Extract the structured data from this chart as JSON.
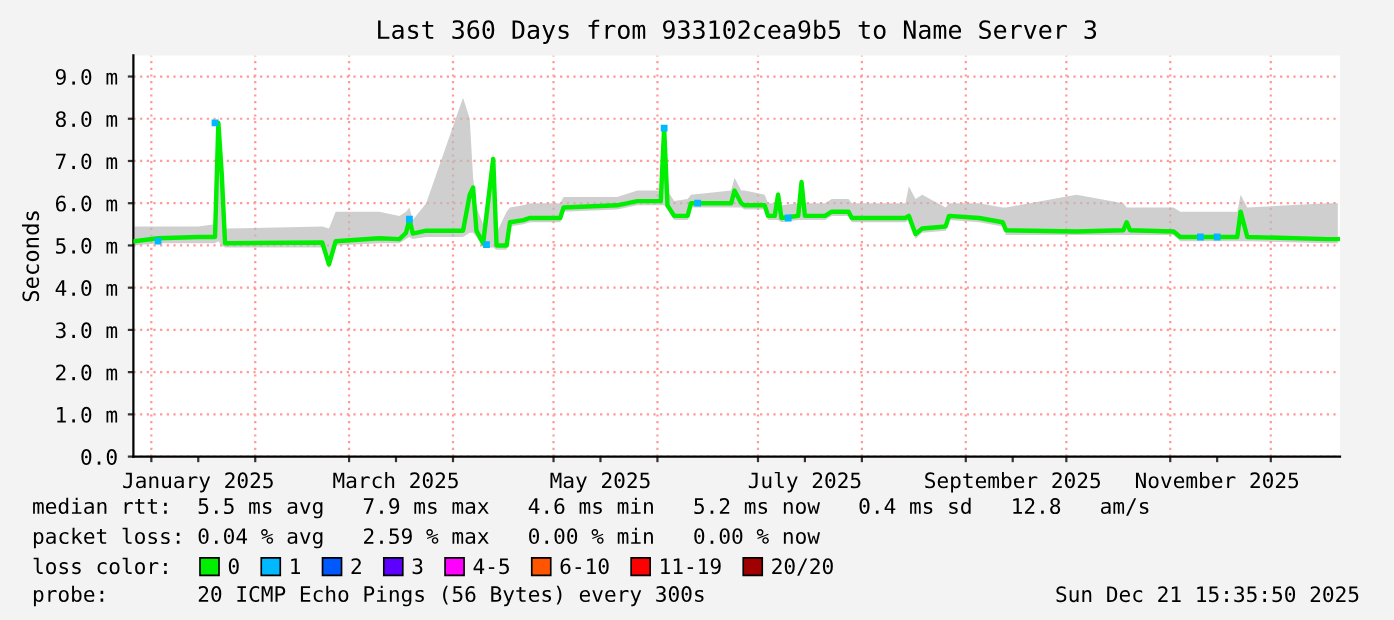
{
  "chart_data": {
    "type": "line",
    "title": "Last 360 Days from 933102cea9b5 to Name Server 3",
    "ylabel": "Seconds",
    "xlim": [
      "2024-12-26T15:35",
      "2025-12-21T15:35"
    ],
    "xticks": [
      {
        "value": "2025-01-01",
        "label": null
      },
      {
        "value": "2025-01-15",
        "label": "January 2025"
      },
      {
        "value": "2025-02-01",
        "label": null
      },
      {
        "value": "2025-03-01",
        "label": null
      },
      {
        "value": "2025-03-15",
        "label": "March 2025"
      },
      {
        "value": "2025-04-01",
        "label": null
      },
      {
        "value": "2025-05-01",
        "label": null
      },
      {
        "value": "2025-05-15",
        "label": "May 2025"
      },
      {
        "value": "2025-06-01",
        "label": null
      },
      {
        "value": "2025-07-01",
        "label": null
      },
      {
        "value": "2025-07-15",
        "label": "July 2025"
      },
      {
        "value": "2025-08-01",
        "label": null
      },
      {
        "value": "2025-09-01",
        "label": null
      },
      {
        "value": "2025-09-15",
        "label": "September 2025"
      },
      {
        "value": "2025-10-01",
        "label": null
      },
      {
        "value": "2025-11-01",
        "label": null
      },
      {
        "value": "2025-11-15",
        "label": "November 2025"
      },
      {
        "value": "2025-12-01",
        "label": null
      }
    ],
    "ylim": [
      0,
      9.5
    ],
    "yticks": [
      {
        "value": 0,
        "label": "0.0"
      },
      {
        "value": 1,
        "label": "1.0 m"
      },
      {
        "value": 2,
        "label": "2.0 m"
      },
      {
        "value": 3,
        "label": "3.0 m"
      },
      {
        "value": 4,
        "label": "4.0 m"
      },
      {
        "value": 5,
        "label": "5.0 m"
      },
      {
        "value": 6,
        "label": "6.0 m"
      },
      {
        "value": 7,
        "label": "7.0 m"
      },
      {
        "value": 8,
        "label": "8.0 m"
      },
      {
        "value": 9,
        "label": "9.0 m"
      }
    ],
    "grid": true,
    "legend": "bottom",
    "legend_title": "loss color:",
    "series": [
      {
        "name": "0",
        "color": "#00ee00",
        "x": [
          "2024-12-27",
          "2025-01-03",
          "2025-01-15",
          "2025-01-20",
          "2025-01-21",
          "2025-01-22",
          "2025-01-23",
          "2025-02-21",
          "2025-02-23",
          "2025-02-25",
          "2025-03-10",
          "2025-03-16",
          "2025-03-18",
          "2025-03-19",
          "2025-03-20",
          "2025-03-24",
          "2025-04-04",
          "2025-04-06",
          "2025-04-07",
          "2025-04-08",
          "2025-04-10",
          "2025-04-13",
          "2025-04-14",
          "2025-04-17",
          "2025-04-18",
          "2025-04-22",
          "2025-04-24",
          "2025-05-03",
          "2025-05-04",
          "2025-05-20",
          "2025-05-26",
          "2025-06-02",
          "2025-06-03",
          "2025-06-04",
          "2025-06-06",
          "2025-06-10",
          "2025-06-11",
          "2025-06-23",
          "2025-06-24",
          "2025-06-26",
          "2025-06-27",
          "2025-07-03",
          "2025-07-04",
          "2025-07-06",
          "2025-07-07",
          "2025-07-08",
          "2025-07-13",
          "2025-07-14",
          "2025-07-15",
          "2025-07-21",
          "2025-07-23",
          "2025-07-28",
          "2025-07-29",
          "2025-08-14",
          "2025-08-15",
          "2025-08-17",
          "2025-08-19",
          "2025-08-26",
          "2025-08-27",
          "2025-09-05",
          "2025-09-12",
          "2025-09-13",
          "2025-10-04",
          "2025-10-18",
          "2025-10-19",
          "2025-10-20",
          "2025-11-02",
          "2025-11-04",
          "2025-11-21",
          "2025-11-22",
          "2025-11-24",
          "2025-12-18",
          "2025-12-21"
        ],
        "values": [
          5.1,
          5.17,
          5.2,
          5.2,
          7.9,
          6.7,
          5.05,
          5.07,
          4.55,
          5.1,
          5.17,
          5.15,
          5.3,
          5.62,
          5.28,
          5.35,
          5.35,
          6.2,
          6.37,
          5.35,
          5.05,
          7.05,
          5.0,
          5.0,
          5.55,
          5.6,
          5.65,
          5.65,
          5.9,
          5.95,
          6.05,
          6.05,
          7.78,
          5.95,
          5.7,
          5.7,
          6.0,
          6.0,
          6.3,
          6.0,
          5.95,
          5.95,
          5.7,
          5.7,
          6.2,
          5.65,
          5.7,
          6.5,
          5.7,
          5.7,
          5.8,
          5.8,
          5.65,
          5.65,
          5.7,
          5.27,
          5.4,
          5.45,
          5.7,
          5.65,
          5.55,
          5.36,
          5.33,
          5.36,
          5.55,
          5.36,
          5.33,
          5.2,
          5.2,
          5.8,
          5.2,
          5.15,
          5.15
        ],
        "lower": [
          5.0,
          5.05,
          5.05,
          5.05,
          5.1,
          5.0,
          4.95,
          4.95,
          4.45,
          5.0,
          5.05,
          5.05,
          5.15,
          5.2,
          5.15,
          5.2,
          5.2,
          5.3,
          5.3,
          5.2,
          4.95,
          4.95,
          4.9,
          4.9,
          5.45,
          5.5,
          5.55,
          5.55,
          5.8,
          5.85,
          5.95,
          5.95,
          5.95,
          5.85,
          5.6,
          5.6,
          5.9,
          5.9,
          5.9,
          5.9,
          5.85,
          5.85,
          5.6,
          5.6,
          5.6,
          5.55,
          5.6,
          5.6,
          5.6,
          5.6,
          5.7,
          5.7,
          5.55,
          5.55,
          5.6,
          5.15,
          5.3,
          5.35,
          5.6,
          5.55,
          5.45,
          5.25,
          5.25,
          5.25,
          5.25,
          5.25,
          5.25,
          5.1,
          5.1,
          5.1,
          5.1,
          5.05,
          5.05
        ],
        "upper": [
          5.45,
          5.45,
          5.45,
          5.5,
          8.1,
          7.0,
          5.4,
          5.45,
          5.4,
          5.8,
          5.8,
          5.7,
          5.8,
          5.9,
          5.6,
          6.0,
          8.5,
          8.0,
          6.6,
          5.9,
          5.5,
          7.2,
          5.3,
          5.8,
          5.9,
          5.95,
          6.0,
          6.0,
          6.15,
          6.15,
          6.3,
          6.3,
          7.85,
          6.3,
          6.05,
          6.1,
          6.2,
          6.3,
          6.6,
          6.3,
          6.3,
          6.2,
          6.0,
          6.0,
          6.3,
          5.95,
          6.0,
          6.6,
          6.0,
          6.0,
          6.1,
          6.1,
          6.0,
          6.0,
          6.4,
          6.1,
          6.2,
          5.9,
          6.0,
          6.0,
          5.9,
          5.9,
          6.2,
          6.0,
          5.9,
          5.9,
          5.9,
          5.8,
          5.8,
          6.2,
          5.9,
          6.0,
          6.0
        ]
      },
      {
        "name": "1",
        "color": "#00b8ff",
        "type": "scatter",
        "marker": "square",
        "x": [
          "2025-01-03",
          "2025-01-20",
          "2025-03-19",
          "2025-04-11",
          "2025-06-03",
          "2025-06-13",
          "2025-07-10",
          "2025-11-10",
          "2025-11-15"
        ],
        "values": [
          5.1,
          7.9,
          5.62,
          5.02,
          7.78,
          6.0,
          5.65,
          5.2,
          5.2
        ]
      },
      {
        "name": "2",
        "color": "#0059ff"
      },
      {
        "name": "3",
        "color": "#5e00ff"
      },
      {
        "name": "4-5",
        "color": "#ff00ff"
      },
      {
        "name": "6-10",
        "color": "#ff5500"
      },
      {
        "name": "11-19",
        "color": "#ff0000"
      },
      {
        "name": "20/20",
        "color": "#a10000"
      }
    ],
    "annotations": [
      "median rtt:  5.5 ms avg   7.9 ms max   4.6 ms min   5.2 ms now   0.4 ms sd   12.8   am/s",
      "packet loss: 0.04 % avg   2.59 % max   0.00 % min   0.00 % now",
      "probe:       20 ICMP Echo Pings (56 Bytes) every 300s",
      "Sun Dec 21 15:35:50 2025"
    ]
  }
}
